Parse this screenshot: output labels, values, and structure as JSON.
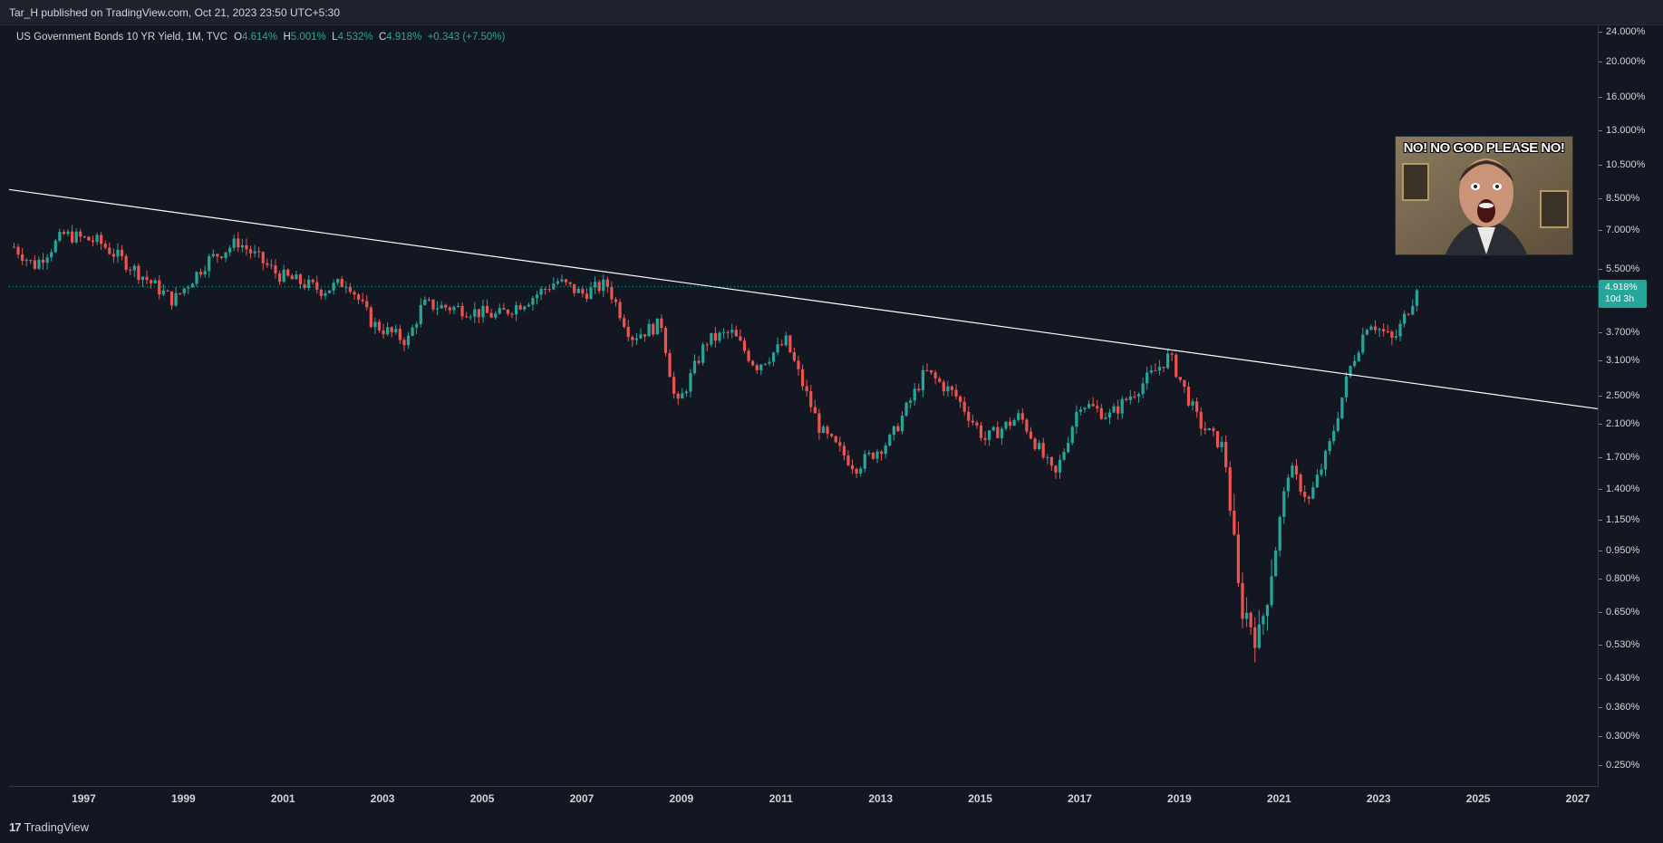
{
  "header": {
    "published_text": "Tar_H published on TradingView.com, Oct 21, 2023 23:50 UTC+5:30"
  },
  "legend": {
    "title": "US Government Bonds 10 YR Yield, 1M, TVC",
    "open_label": "O",
    "open_value": "4.614%",
    "high_label": "H",
    "high_value": "5.001%",
    "low_label": "L",
    "low_value": "4.532%",
    "close_label": "C",
    "close_value": "4.918%",
    "change": "+0.343 (+7.50%)"
  },
  "last_price": {
    "value": "4.918%",
    "countdown": "10d 3h"
  },
  "meme": {
    "caption": "NO! NO GOD PLEASE NO!"
  },
  "footer": {
    "brand": "TradingView"
  },
  "colors": {
    "up": "#26a69a",
    "down": "#ef5350",
    "background": "#131722",
    "trendline": "#ffffff"
  },
  "chart_data": {
    "type": "candlestick",
    "title": "US Government Bonds 10 YR Yield, 1M, TVC",
    "yscale": "log",
    "ylim": [
      0.22,
      25
    ],
    "xlim": [
      1995.5,
      2027.4
    ],
    "yticks": [
      "24.000%",
      "20.000%",
      "16.000%",
      "13.000%",
      "10.500%",
      "8.500%",
      "7.000%",
      "5.500%",
      "3.700%",
      "3.100%",
      "2.500%",
      "2.100%",
      "1.700%",
      "1.400%",
      "1.150%",
      "0.950%",
      "0.800%",
      "0.650%",
      "0.530%",
      "0.430%",
      "0.360%",
      "0.300%",
      "0.250%"
    ],
    "xticks": [
      "1997",
      "1999",
      "2001",
      "2003",
      "2005",
      "2007",
      "2009",
      "2011",
      "2013",
      "2015",
      "2017",
      "2019",
      "2021",
      "2023",
      "2025",
      "2027"
    ],
    "close_path": [
      {
        "t": 1995.6,
        "v": 6.3
      },
      {
        "t": 1996.0,
        "v": 5.6
      },
      {
        "t": 1996.6,
        "v": 6.8
      },
      {
        "t": 1997.3,
        "v": 6.5
      },
      {
        "t": 1998.0,
        "v": 5.5
      },
      {
        "t": 1998.8,
        "v": 4.5
      },
      {
        "t": 1999.5,
        "v": 5.8
      },
      {
        "t": 2000.1,
        "v": 6.5
      },
      {
        "t": 2000.9,
        "v": 5.3
      },
      {
        "t": 2001.8,
        "v": 4.8
      },
      {
        "t": 2002.3,
        "v": 5.1
      },
      {
        "t": 2002.8,
        "v": 3.9
      },
      {
        "t": 2003.5,
        "v": 3.5
      },
      {
        "t": 2003.8,
        "v": 4.4
      },
      {
        "t": 2004.5,
        "v": 4.3
      },
      {
        "t": 2005.3,
        "v": 4.1
      },
      {
        "t": 2006.0,
        "v": 4.6
      },
      {
        "t": 2006.5,
        "v": 5.1
      },
      {
        "t": 2007.0,
        "v": 4.7
      },
      {
        "t": 2007.5,
        "v": 5.0
      },
      {
        "t": 2008.0,
        "v": 3.6
      },
      {
        "t": 2008.6,
        "v": 3.9
      },
      {
        "t": 2008.9,
        "v": 2.3
      },
      {
        "t": 2009.5,
        "v": 3.5
      },
      {
        "t": 2010.0,
        "v": 3.7
      },
      {
        "t": 2010.5,
        "v": 3.0
      },
      {
        "t": 2010.9,
        "v": 3.3
      },
      {
        "t": 2011.1,
        "v": 3.5
      },
      {
        "t": 2011.8,
        "v": 2.0
      },
      {
        "t": 2012.5,
        "v": 1.6
      },
      {
        "t": 2013.2,
        "v": 1.9
      },
      {
        "t": 2013.9,
        "v": 2.9
      },
      {
        "t": 2014.5,
        "v": 2.5
      },
      {
        "t": 2015.1,
        "v": 1.9
      },
      {
        "t": 2015.8,
        "v": 2.2
      },
      {
        "t": 2016.5,
        "v": 1.5
      },
      {
        "t": 2017.0,
        "v": 2.4
      },
      {
        "t": 2017.6,
        "v": 2.2
      },
      {
        "t": 2018.5,
        "v": 2.9
      },
      {
        "t": 2018.8,
        "v": 3.2
      },
      {
        "t": 2019.4,
        "v": 2.1
      },
      {
        "t": 2019.9,
        "v": 1.8
      },
      {
        "t": 2020.2,
        "v": 0.7
      },
      {
        "t": 2020.6,
        "v": 0.55
      },
      {
        "t": 2021.2,
        "v": 1.6
      },
      {
        "t": 2021.6,
        "v": 1.3
      },
      {
        "t": 2022.0,
        "v": 1.8
      },
      {
        "t": 2022.4,
        "v": 2.9
      },
      {
        "t": 2022.8,
        "v": 4.0
      },
      {
        "t": 2023.3,
        "v": 3.5
      },
      {
        "t": 2023.8,
        "v": 4.92
      }
    ],
    "trendline": [
      {
        "t": 1995.5,
        "v": 9.0
      },
      {
        "t": 2027.4,
        "v": 2.3
      }
    ]
  }
}
